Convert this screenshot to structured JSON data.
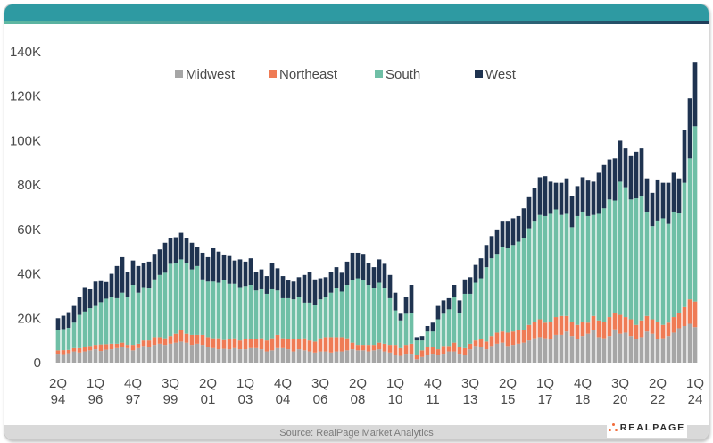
{
  "source_text": "Source: RealPage Market Analytics",
  "logo_text": "REALPAGE",
  "colors": {
    "header": "#2e9aa2",
    "Midwest": "#a6a6a6",
    "Northeast": "#ef7b55",
    "South": "#6fbfa6",
    "West": "#1f3350",
    "axis_text": "#4a4a4a"
  },
  "chart_data": {
    "type": "bar",
    "stacked": true,
    "title": "",
    "xlabel": "",
    "ylabel": "",
    "ylim": [
      0,
      140000
    ],
    "yticks": [
      0,
      20000,
      40000,
      60000,
      80000,
      100000,
      120000,
      140000
    ],
    "ytick_labels": [
      "0",
      "20K",
      "40K",
      "60K",
      "80K",
      "100K",
      "120K",
      "140K"
    ],
    "legend": [
      "Midwest",
      "Northeast",
      "South",
      "West"
    ],
    "legend_position": "top-center",
    "x_label_every": 7,
    "x_tick_labels": [
      [
        "2Q",
        "94"
      ],
      [
        "1Q",
        "96"
      ],
      [
        "4Q",
        "97"
      ],
      [
        "3Q",
        "99"
      ],
      [
        "2Q",
        "01"
      ],
      [
        "1Q",
        "03"
      ],
      [
        "4Q",
        "04"
      ],
      [
        "3Q",
        "06"
      ],
      [
        "2Q",
        "08"
      ],
      [
        "1Q",
        "10"
      ],
      [
        "4Q",
        "11"
      ],
      [
        "3Q",
        "13"
      ],
      [
        "2Q",
        "15"
      ],
      [
        "1Q",
        "17"
      ],
      [
        "4Q",
        "18"
      ],
      [
        "3Q",
        "20"
      ],
      [
        "2Q",
        "22"
      ],
      [
        "1Q",
        "24"
      ]
    ],
    "categories": [
      "2Q94",
      "3Q94",
      "4Q94",
      "1Q95",
      "2Q95",
      "3Q95",
      "4Q95",
      "1Q96",
      "2Q96",
      "3Q96",
      "4Q96",
      "1Q97",
      "2Q97",
      "3Q97",
      "4Q97",
      "1Q98",
      "2Q98",
      "3Q98",
      "4Q98",
      "1Q99",
      "2Q99",
      "3Q99",
      "4Q99",
      "1Q00",
      "2Q00",
      "3Q00",
      "4Q00",
      "1Q01",
      "2Q01",
      "3Q01",
      "4Q01",
      "1Q02",
      "2Q02",
      "3Q02",
      "4Q02",
      "1Q03",
      "2Q03",
      "3Q03",
      "4Q03",
      "1Q04",
      "2Q04",
      "3Q04",
      "4Q04",
      "1Q05",
      "2Q05",
      "3Q05",
      "4Q05",
      "1Q06",
      "2Q06",
      "3Q06",
      "4Q06",
      "1Q07",
      "2Q07",
      "3Q07",
      "4Q07",
      "1Q08",
      "2Q08",
      "3Q08",
      "4Q08",
      "1Q09",
      "2Q09",
      "3Q09",
      "4Q09",
      "1Q10",
      "2Q10",
      "3Q10",
      "4Q10",
      "1Q11",
      "2Q11",
      "3Q11",
      "4Q11",
      "1Q12",
      "2Q12",
      "3Q12",
      "4Q12",
      "1Q13",
      "2Q13",
      "3Q13",
      "4Q13",
      "1Q14",
      "2Q14",
      "3Q14",
      "4Q14",
      "1Q15",
      "2Q15",
      "3Q15",
      "4Q15",
      "1Q16",
      "2Q16",
      "3Q16",
      "4Q16",
      "1Q17",
      "2Q17",
      "3Q17",
      "4Q17",
      "1Q18",
      "2Q18",
      "3Q18",
      "4Q18",
      "1Q19",
      "2Q19",
      "3Q19",
      "4Q19",
      "1Q20",
      "2Q20",
      "3Q20",
      "4Q20",
      "1Q21",
      "2Q21",
      "3Q21",
      "4Q21",
      "1Q22",
      "2Q22",
      "3Q22",
      "4Q22",
      "1Q23",
      "2Q23",
      "3Q23",
      "4Q23",
      "1Q24"
    ],
    "series": [
      {
        "name": "Midwest",
        "values": [
          4000,
          3800,
          4200,
          5000,
          4500,
          5000,
          5500,
          6000,
          5200,
          5800,
          6000,
          6500,
          7000,
          6500,
          5500,
          6500,
          7500,
          7000,
          8000,
          8500,
          8000,
          8500,
          9000,
          9500,
          9000,
          8000,
          8500,
          8000,
          7000,
          6500,
          6000,
          6200,
          6000,
          6500,
          6000,
          6000,
          6500,
          6500,
          6000,
          5000,
          5500,
          6500,
          6500,
          6000,
          5000,
          6000,
          5500,
          5000,
          4500,
          5000,
          5000,
          4500,
          5000,
          5000,
          5500,
          6000,
          5500,
          5500,
          5000,
          5500,
          6000,
          5000,
          4500,
          3500,
          3000,
          4000,
          4000,
          1500,
          2500,
          3500,
          4000,
          3500,
          4000,
          5000,
          5000,
          4000,
          3500,
          6000,
          7500,
          7000,
          6000,
          7500,
          8500,
          9000,
          7500,
          8000,
          8500,
          9000,
          10000,
          11000,
          11500,
          11000,
          10500,
          12500,
          12500,
          14000,
          12000,
          10500,
          12000,
          13000,
          14500,
          11500,
          11000,
          12000,
          15000,
          13000,
          13500,
          12000,
          10500,
          11500,
          14000,
          13000,
          10500,
          11000,
          12000,
          13500,
          15500,
          16500,
          17500,
          16000
        ]
      },
      {
        "name": "Northeast",
        "values": [
          1500,
          1800,
          1500,
          1500,
          2000,
          2000,
          2000,
          2000,
          3000,
          2500,
          2500,
          2000,
          2000,
          1500,
          2500,
          2000,
          2500,
          3000,
          3500,
          3000,
          3000,
          3500,
          4000,
          5000,
          4000,
          4500,
          4000,
          4500,
          4500,
          4500,
          5000,
          4000,
          4500,
          4500,
          4000,
          4500,
          4000,
          4000,
          5000,
          5000,
          5500,
          6000,
          4500,
          4500,
          5500,
          4500,
          5500,
          5000,
          5000,
          6000,
          6500,
          7000,
          6500,
          6500,
          5500,
          3000,
          2500,
          2500,
          3000,
          2500,
          3000,
          3500,
          3500,
          4500,
          3500,
          4000,
          4500,
          2000,
          3000,
          3500,
          3000,
          2500,
          3500,
          2500,
          4000,
          3000,
          3000,
          2500,
          2500,
          3500,
          3500,
          4500,
          5000,
          5000,
          6000,
          6000,
          6000,
          5500,
          7000,
          7500,
          8000,
          7000,
          8000,
          8000,
          8500,
          7000,
          6500,
          6500,
          6500,
          5000,
          6500,
          7500,
          7500,
          8500,
          7500,
          8500,
          7000,
          7500,
          6500,
          7500,
          7000,
          6500,
          8000,
          6000,
          6000,
          7000,
          7000,
          8500,
          11000,
          11500
        ]
      },
      {
        "name": "South",
        "values": [
          9000,
          9500,
          10000,
          11500,
          15000,
          16000,
          17000,
          17500,
          19000,
          20500,
          21000,
          20500,
          22500,
          21500,
          27000,
          23000,
          24000,
          23500,
          26000,
          28000,
          29500,
          32500,
          32000,
          32000,
          32000,
          29500,
          31000,
          25000,
          25000,
          25500,
          25000,
          27000,
          25000,
          24500,
          24000,
          24000,
          24500,
          22000,
          22000,
          21000,
          22000,
          20000,
          18000,
          18500,
          18000,
          19000,
          16000,
          17000,
          16500,
          17500,
          18000,
          20000,
          22000,
          20500,
          24000,
          28000,
          30000,
          29000,
          27000,
          25500,
          27000,
          25000,
          21000,
          15500,
          12500,
          14000,
          14000,
          6500,
          4500,
          7000,
          7000,
          13500,
          14500,
          16500,
          20500,
          15500,
          24500,
          22500,
          26000,
          27500,
          33500,
          35000,
          35500,
          38000,
          38000,
          39000,
          40000,
          41500,
          43500,
          45000,
          47000,
          48000,
          48500,
          48500,
          45500,
          46000,
          42500,
          49000,
          49500,
          48000,
          45500,
          48000,
          51000,
          53000,
          50500,
          60000,
          58500,
          54000,
          57000,
          56000,
          47000,
          42000,
          45500,
          48000,
          44500,
          47500,
          45000,
          56000,
          63500,
          79000
        ]
      },
      {
        "name": "West",
        "values": [
          5500,
          6000,
          7000,
          7500,
          8000,
          11000,
          8500,
          11000,
          9500,
          7500,
          10500,
          14500,
          16000,
          11500,
          11000,
          12000,
          11000,
          12000,
          11500,
          11500,
          13500,
          11500,
          11500,
          12000,
          11000,
          12000,
          8500,
          12000,
          11000,
          15000,
          14000,
          11500,
          12500,
          10500,
          12500,
          11000,
          12000,
          8500,
          9000,
          8000,
          12000,
          10000,
          10000,
          8000,
          8000,
          9000,
          12500,
          14000,
          11500,
          9500,
          9000,
          9500,
          9500,
          8500,
          10500,
          12500,
          11500,
          12000,
          10000,
          9500,
          10500,
          11000,
          10500,
          8000,
          3000,
          7500,
          12500,
          1500,
          2000,
          2500,
          4000,
          6000,
          6000,
          5000,
          5500,
          5500,
          6500,
          7500,
          8000,
          9000,
          10000,
          10000,
          11000,
          11500,
          12000,
          12000,
          11500,
          13500,
          14000,
          15000,
          17000,
          18000,
          14500,
          12000,
          14500,
          16000,
          14000,
          13500,
          15500,
          16000,
          15000,
          18500,
          19500,
          18000,
          19000,
          18500,
          17500,
          19500,
          21000,
          21500,
          15000,
          15000,
          18500,
          16000,
          18500,
          17500,
          15500,
          24000,
          27000,
          29000
        ]
      }
    ]
  }
}
